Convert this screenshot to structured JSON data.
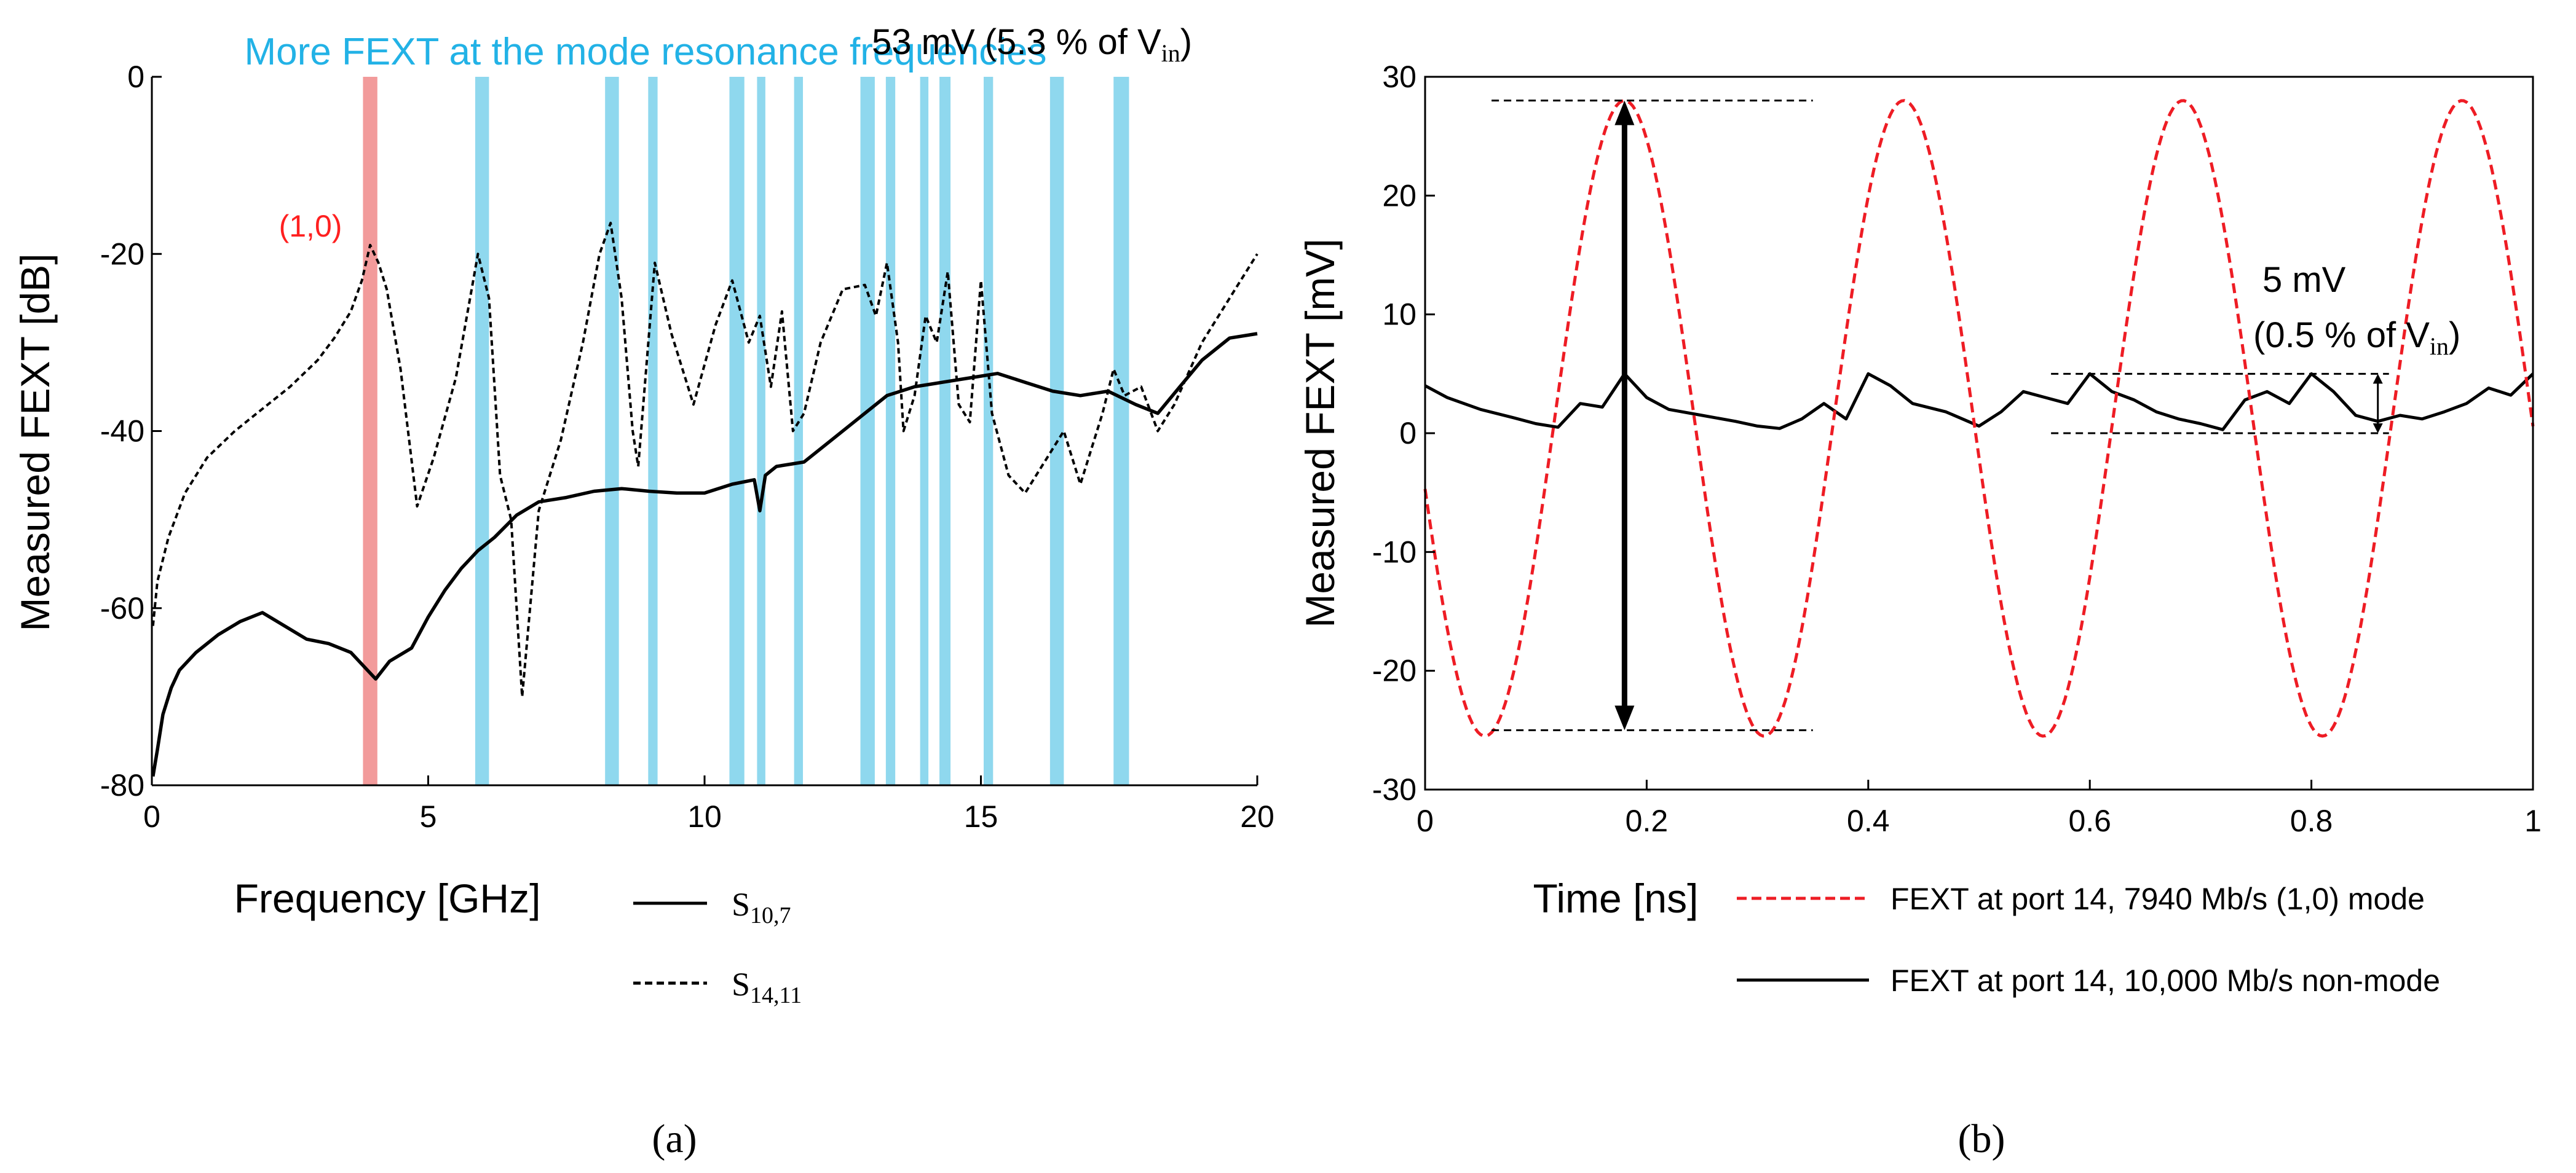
{
  "colors": {
    "resonance_band": "#8fd8ee",
    "mode_band": "#f29b9b",
    "mode_label": "#ff2020",
    "banner_text": "#22b2e6",
    "series_mode": "#ee1c24",
    "axis": "#000000"
  },
  "chart_data": [
    {
      "type": "line",
      "panel_label": "(a)",
      "banner": "More FEXT at the mode resonance frequencies",
      "mode_label": "(1,0)",
      "xlabel": "Frequency [GHz]",
      "ylabel": "Measured FEXT [dB]",
      "xlim": [
        0,
        20
      ],
      "ylim": [
        -80,
        0
      ],
      "xticks": [
        0,
        5,
        10,
        15,
        20
      ],
      "yticks": [
        -80,
        -60,
        -40,
        -20,
        0
      ],
      "grid": false,
      "legend_placement": "below",
      "mode_band": [
        3.82,
        4.08
      ],
      "resonance_bands": [
        [
          5.85,
          6.1
        ],
        [
          8.2,
          8.45
        ],
        [
          8.98,
          9.15
        ],
        [
          10.45,
          10.72
        ],
        [
          10.95,
          11.1
        ],
        [
          11.62,
          11.78
        ],
        [
          12.82,
          13.08
        ],
        [
          13.28,
          13.45
        ],
        [
          13.9,
          14.05
        ],
        [
          14.25,
          14.45
        ],
        [
          15.05,
          15.22
        ],
        [
          16.25,
          16.5
        ],
        [
          17.4,
          17.68
        ]
      ],
      "series": [
        {
          "name": "S10,7",
          "name_base": "S",
          "name_sub": "10,7",
          "style": "solid",
          "x": [
            0.02,
            0.1,
            0.2,
            0.35,
            0.5,
            0.8,
            1.2,
            1.6,
            2.0,
            2.4,
            2.8,
            3.2,
            3.6,
            3.9,
            4.05,
            4.3,
            4.7,
            5.0,
            5.3,
            5.6,
            5.9,
            6.2,
            6.6,
            7.0,
            7.5,
            8.0,
            8.5,
            9.0,
            9.5,
            10.0,
            10.5,
            10.9,
            11.0,
            11.1,
            11.3,
            11.8,
            12.3,
            12.8,
            13.3,
            13.8,
            14.3,
            14.8,
            15.3,
            15.8,
            16.3,
            16.8,
            17.3,
            17.8,
            18.2,
            18.6,
            19.0,
            19.5,
            20.0
          ],
          "y": [
            -79,
            -76,
            -72,
            -69,
            -67,
            -65,
            -63,
            -61.5,
            -60.5,
            -62,
            -63.5,
            -64,
            -65,
            -67,
            -68,
            -66,
            -64.5,
            -61,
            -58,
            -55.5,
            -53.5,
            -52,
            -49.5,
            -48,
            -47.5,
            -46.8,
            -46.5,
            -46.8,
            -47,
            -47,
            -46,
            -45.5,
            -49,
            -45,
            -44,
            -43.5,
            -41,
            -38.5,
            -36,
            -35,
            -34.5,
            -34,
            -33.5,
            -34.5,
            -35.5,
            -36,
            -35.5,
            -37,
            -38,
            -35,
            -32,
            -29.5,
            -29
          ]
        },
        {
          "name": "S14,11",
          "name_base": "S",
          "name_sub": "14,11",
          "style": "dashed",
          "x": [
            0.02,
            0.1,
            0.3,
            0.6,
            1.0,
            1.5,
            2.0,
            2.5,
            3.0,
            3.3,
            3.6,
            3.8,
            3.95,
            4.1,
            4.25,
            4.5,
            4.8,
            5.1,
            5.5,
            5.9,
            6.1,
            6.3,
            6.5,
            6.7,
            7.0,
            7.4,
            7.8,
            8.1,
            8.3,
            8.5,
            8.7,
            8.8,
            9.1,
            9.4,
            9.8,
            10.2,
            10.5,
            10.8,
            11.0,
            11.2,
            11.4,
            11.6,
            11.8,
            12.1,
            12.5,
            12.9,
            13.1,
            13.3,
            13.5,
            13.6,
            13.8,
            14.0,
            14.2,
            14.4,
            14.6,
            14.8,
            15.0,
            15.2,
            15.5,
            15.8,
            16.1,
            16.5,
            16.8,
            17.0,
            17.2,
            17.4,
            17.6,
            17.9,
            18.2,
            18.5,
            19.0,
            19.5,
            20.0
          ],
          "y": [
            -62,
            -57,
            -52,
            -47,
            -43,
            -40,
            -37.5,
            -35,
            -32,
            -29.5,
            -26.5,
            -23,
            -19,
            -21,
            -24,
            -33,
            -48.5,
            -43,
            -34,
            -20,
            -25,
            -45,
            -50,
            -70,
            -49,
            -41,
            -30,
            -20,
            -16.5,
            -25,
            -40,
            -44,
            -21,
            -29,
            -37,
            -28,
            -23,
            -30,
            -27,
            -35,
            -26.5,
            -40,
            -38,
            -30,
            -24,
            -23.5,
            -27,
            -21,
            -30,
            -40,
            -36,
            -27,
            -30,
            -22,
            -37,
            -39,
            -23,
            -38,
            -45,
            -47,
            -44,
            -40,
            -46,
            -42,
            -38,
            -33,
            -36,
            -35,
            -40,
            -37,
            -30,
            -25,
            -20
          ]
        }
      ]
    },
    {
      "type": "line",
      "panel_label": "(b)",
      "xlabel": "Time [ns]",
      "ylabel": "Measured FEXT [mV]",
      "xlim": [
        0,
        1
      ],
      "ylim": [
        -30,
        30
      ],
      "xticks": [
        0,
        0.2,
        0.4,
        0.6,
        0.8,
        1
      ],
      "yticks": [
        -30,
        -20,
        -10,
        0,
        10,
        20,
        30
      ],
      "grid": false,
      "legend_placement": "below",
      "annotation_big": {
        "text_main": "53 mV (5.3 % of V",
        "text_sub": "in",
        "text_end": ")",
        "x": 0.18,
        "y_top": 28,
        "y_bottom": -25,
        "line_from": 0.06,
        "line_to": 0.35
      },
      "annotation_small": {
        "line1": "5 mV",
        "line2_main": "(0.5 % of V",
        "line2_sub": "in",
        "line2_end": ")",
        "x": 0.86,
        "y_top": 5,
        "y_bottom": 0,
        "line_from": 0.565,
        "line_to": 0.87
      },
      "series": [
        {
          "name": "FEXT at port 14, 7940 Mb/s (1,0) mode",
          "style": "dashed",
          "color": "#ee1c24",
          "period": 0.252,
          "min": -25.5,
          "max": 28,
          "first_max_t": 0.18
        },
        {
          "name": "FEXT at port 14, 10,000 Mb/s non-mode",
          "style": "solid",
          "color": "#000000",
          "x": [
            0,
            0.02,
            0.05,
            0.08,
            0.1,
            0.12,
            0.14,
            0.16,
            0.18,
            0.2,
            0.22,
            0.25,
            0.28,
            0.3,
            0.32,
            0.34,
            0.36,
            0.38,
            0.4,
            0.42,
            0.44,
            0.47,
            0.5,
            0.52,
            0.54,
            0.56,
            0.58,
            0.6,
            0.62,
            0.64,
            0.66,
            0.68,
            0.7,
            0.72,
            0.74,
            0.76,
            0.78,
            0.8,
            0.82,
            0.84,
            0.86,
            0.88,
            0.9,
            0.92,
            0.94,
            0.96,
            0.98,
            1.0
          ],
          "y": [
            4,
            3,
            2,
            1.3,
            0.8,
            0.5,
            2.5,
            2.2,
            5,
            3,
            2,
            1.5,
            1,
            0.6,
            0.4,
            1.2,
            2.5,
            1.2,
            5,
            4,
            2.5,
            1.8,
            0.6,
            1.8,
            3.5,
            3,
            2.5,
            5,
            3.5,
            2.8,
            1.8,
            1.2,
            0.8,
            0.3,
            2.8,
            3.5,
            2.5,
            5,
            3.5,
            1.5,
            1,
            1.5,
            1.2,
            1.8,
            2.5,
            3.8,
            3.2,
            5
          ]
        }
      ]
    }
  ]
}
